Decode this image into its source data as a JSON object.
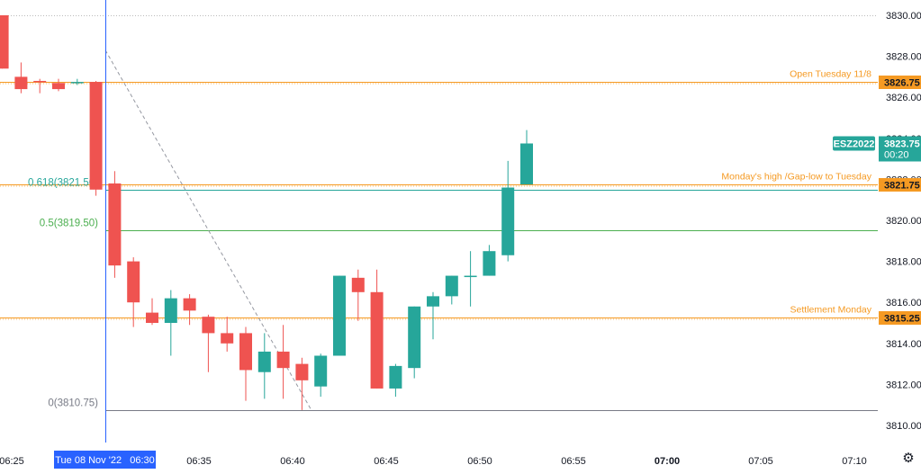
{
  "chart_data": {
    "type": "candlestick",
    "symbol": "ESZ2022",
    "current_price": "3823.75",
    "countdown": "00:20",
    "crosshair_label": "Tue 08 Nov '22   06:30",
    "ylim": [
      3809.8,
      3831.0
    ],
    "yticks": [
      3810.0,
      3812.0,
      3814.0,
      3816.0,
      3818.0,
      3820.0,
      3822.0,
      3824.0,
      3826.0,
      3828.0,
      3830.0
    ],
    "x_ticks": [
      {
        "minute": 25,
        "label": "06:25",
        "bold": false
      },
      {
        "minute": 35,
        "label": "06:35",
        "bold": false
      },
      {
        "minute": 40,
        "label": "06:40",
        "bold": false
      },
      {
        "minute": 45,
        "label": "06:45",
        "bold": false
      },
      {
        "minute": 50,
        "label": "06:50",
        "bold": false
      },
      {
        "minute": 55,
        "label": "06:55",
        "bold": false
      },
      {
        "minute": 60,
        "label": "07:00",
        "bold": true
      },
      {
        "minute": 65,
        "label": "07:05",
        "bold": false
      },
      {
        "minute": 70,
        "label": "07:10",
        "bold": false
      }
    ],
    "crosshair_minute": 30,
    "candles": [
      {
        "t": 24.5,
        "o": 3830.0,
        "h": 3830.0,
        "c": 3827.4,
        "l": 3827.4
      },
      {
        "t": 25.5,
        "o": 3827.0,
        "h": 3827.7,
        "c": 3826.4,
        "l": 3826.2
      },
      {
        "t": 26.5,
        "o": 3826.8,
        "h": 3826.9,
        "c": 3826.75,
        "l": 3826.2
      },
      {
        "t": 27.5,
        "o": 3826.7,
        "h": 3826.9,
        "c": 3826.4,
        "l": 3826.3
      },
      {
        "t": 28.5,
        "o": 3826.75,
        "h": 3826.9,
        "c": 3826.75,
        "l": 3826.6
      },
      {
        "t": 29.5,
        "o": 3826.75,
        "h": 3826.8,
        "c": 3821.5,
        "l": 3821.2
      },
      {
        "t": 30.5,
        "o": 3821.8,
        "h": 3822.4,
        "c": 3817.8,
        "l": 3817.2
      },
      {
        "t": 31.5,
        "o": 3818.0,
        "h": 3818.2,
        "c": 3816.0,
        "l": 3814.8
      },
      {
        "t": 32.5,
        "o": 3815.5,
        "h": 3816.2,
        "c": 3815.0,
        "l": 3814.9
      },
      {
        "t": 33.5,
        "o": 3815.0,
        "h": 3816.6,
        "c": 3816.2,
        "l": 3813.4
      },
      {
        "t": 34.5,
        "o": 3816.2,
        "h": 3816.4,
        "c": 3815.6,
        "l": 3814.9
      },
      {
        "t": 35.5,
        "o": 3815.3,
        "h": 3815.4,
        "c": 3814.5,
        "l": 3812.6
      },
      {
        "t": 36.5,
        "o": 3814.5,
        "h": 3815.3,
        "c": 3814.0,
        "l": 3813.6
      },
      {
        "t": 37.5,
        "o": 3814.5,
        "h": 3814.8,
        "c": 3812.7,
        "l": 3811.2
      },
      {
        "t": 38.5,
        "o": 3812.6,
        "h": 3814.5,
        "c": 3813.6,
        "l": 3811.3
      },
      {
        "t": 39.5,
        "o": 3813.6,
        "h": 3814.9,
        "c": 3812.8,
        "l": 3811.3
      },
      {
        "t": 40.5,
        "o": 3813.0,
        "h": 3813.3,
        "c": 3812.2,
        "l": 3810.75
      },
      {
        "t": 41.5,
        "o": 3811.9,
        "h": 3813.5,
        "c": 3813.4,
        "l": 3811.4
      },
      {
        "t": 42.5,
        "o": 3813.4,
        "h": 3817.3,
        "c": 3817.3,
        "l": 3813.4
      },
      {
        "t": 43.5,
        "o": 3817.2,
        "h": 3817.6,
        "c": 3816.5,
        "l": 3815.1
      },
      {
        "t": 44.5,
        "o": 3816.5,
        "h": 3817.6,
        "c": 3811.8,
        "l": 3811.8
      },
      {
        "t": 45.5,
        "o": 3811.8,
        "h": 3813.0,
        "c": 3812.9,
        "l": 3811.4
      },
      {
        "t": 46.5,
        "o": 3812.8,
        "h": 3815.8,
        "c": 3815.8,
        "l": 3812.3
      },
      {
        "t": 47.5,
        "o": 3815.8,
        "h": 3816.5,
        "c": 3816.3,
        "l": 3814.2
      },
      {
        "t": 48.5,
        "o": 3816.3,
        "h": 3817.3,
        "c": 3817.3,
        "l": 3815.9
      },
      {
        "t": 49.5,
        "o": 3817.3,
        "h": 3818.5,
        "c": 3817.3,
        "l": 3815.8
      },
      {
        "t": 50.5,
        "o": 3817.3,
        "h": 3818.8,
        "c": 3818.5,
        "l": 3817.3
      },
      {
        "t": 51.5,
        "o": 3818.3,
        "h": 3822.9,
        "c": 3821.6,
        "l": 3818.0
      },
      {
        "t": 52.5,
        "o": 3821.75,
        "h": 3824.4,
        "c": 3823.75,
        "l": 3821.75
      }
    ],
    "horizontal_levels": [
      {
        "price": 3826.75,
        "label": "Open Tuesday 11/8",
        "price_label": "3826.75",
        "color": "#f59a23"
      },
      {
        "price": 3821.75,
        "label": "Monday's high /Gap-low to Tuesday",
        "price_label": "3821.75",
        "color": "#f59a23"
      },
      {
        "price": 3815.25,
        "label": "Settlement Monday",
        "price_label": "3815.25",
        "color": "#f59a23"
      }
    ],
    "fib_levels": [
      {
        "price": 3821.5,
        "label": "0.618(3821.50)",
        "color": "#26a69a"
      },
      {
        "price": 3819.5,
        "label": "0.5(3819.50)",
        "color": "#4caf50"
      },
      {
        "price": 3810.75,
        "label": "0(3810.75)",
        "color": "#787b86"
      }
    ],
    "fib_start_minute": 30,
    "trend_line": {
      "x1": 30,
      "y1": 3828.3,
      "x2": 41,
      "y2": 3810.75
    },
    "colors": {
      "up": "#26a69a",
      "down": "#ef5350",
      "crosshair": "#2962ff",
      "level": "#f59a23",
      "grid": "#bbbbbb"
    }
  },
  "settings_icon": "gear-icon"
}
